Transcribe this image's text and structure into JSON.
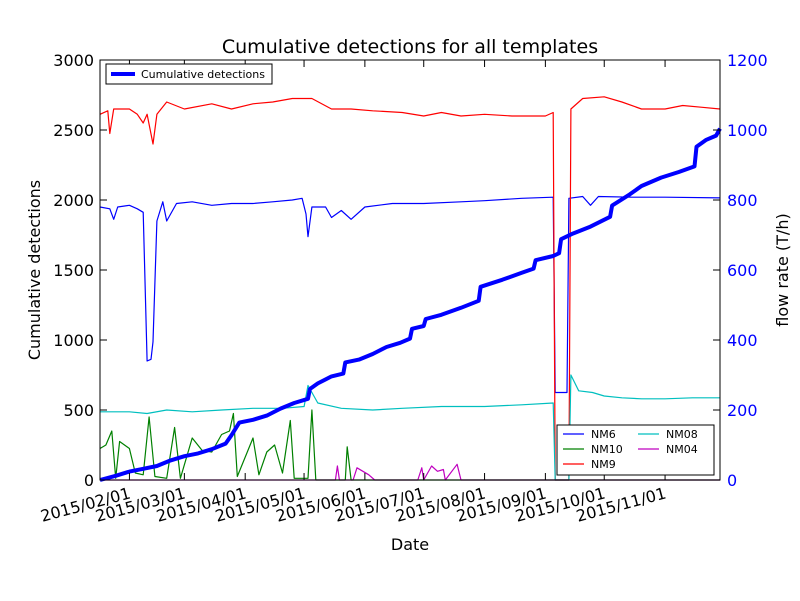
{
  "chart_data": {
    "type": "line",
    "title": "Cumulative detections for all templates",
    "xlabel": "Date",
    "ylabel": "Cumulative detections",
    "y2label": "flow rate (T/h)",
    "xlim": [
      "2015-01-17",
      "2015-11-29"
    ],
    "ylim": [
      0,
      3000
    ],
    "y2lim": [
      0,
      1200
    ],
    "yticks": [
      "0",
      "500",
      "1000",
      "1500",
      "2000",
      "2500",
      "3000"
    ],
    "y2ticks": [
      "0",
      "200",
      "400",
      "600",
      "800",
      "1000",
      "1200"
    ],
    "xticks": [
      {
        "date": "2015-02-01",
        "label": "2015/02/01"
      },
      {
        "date": "2015-03-01",
        "label": "2015/03/01"
      },
      {
        "date": "2015-04-01",
        "label": "2015/04/01"
      },
      {
        "date": "2015-05-01",
        "label": "2015/05/01"
      },
      {
        "date": "2015-06-01",
        "label": "2015/06/01"
      },
      {
        "date": "2015-07-01",
        "label": "2015/07/01"
      },
      {
        "date": "2015-08-01",
        "label": "2015/08/01"
      },
      {
        "date": "2015-09-01",
        "label": "2015/09/01"
      },
      {
        "date": "2015-10-01",
        "label": "2015/10/01"
      },
      {
        "date": "2015-11-01",
        "label": "2015/11/01"
      }
    ],
    "grid": false,
    "legend_left": {
      "placement": "top-left",
      "entries": [
        "Cumulative detections"
      ]
    },
    "legend_right": {
      "placement": "lower-right",
      "entries": [
        "NM6",
        "NM08",
        "NM10",
        "NM04",
        "NM9"
      ]
    },
    "series": [
      {
        "name": "Cumulative detections",
        "axis": "left",
        "color": "#0000ff",
        "width": "thick",
        "points": [
          [
            "2015-01-17",
            0
          ],
          [
            "2015-01-25",
            30
          ],
          [
            "2015-02-01",
            60
          ],
          [
            "2015-02-08",
            80
          ],
          [
            "2015-02-15",
            100
          ],
          [
            "2015-02-22",
            140
          ],
          [
            "2015-03-01",
            170
          ],
          [
            "2015-03-08",
            190
          ],
          [
            "2015-03-15",
            220
          ],
          [
            "2015-03-22",
            260
          ],
          [
            "2015-03-25",
            320
          ],
          [
            "2015-03-29",
            410
          ],
          [
            "2015-04-05",
            430
          ],
          [
            "2015-04-12",
            460
          ],
          [
            "2015-04-19",
            510
          ],
          [
            "2015-04-26",
            550
          ],
          [
            "2015-05-03",
            580
          ],
          [
            "2015-05-04",
            650
          ],
          [
            "2015-05-08",
            690
          ],
          [
            "2015-05-15",
            740
          ],
          [
            "2015-05-21",
            760
          ],
          [
            "2015-05-22",
            840
          ],
          [
            "2015-05-29",
            860
          ],
          [
            "2015-06-05",
            900
          ],
          [
            "2015-06-12",
            950
          ],
          [
            "2015-06-19",
            980
          ],
          [
            "2015-06-24",
            1010
          ],
          [
            "2015-06-25",
            1080
          ],
          [
            "2015-07-01",
            1100
          ],
          [
            "2015-07-02",
            1150
          ],
          [
            "2015-07-10",
            1180
          ],
          [
            "2015-07-20",
            1230
          ],
          [
            "2015-07-29",
            1280
          ],
          [
            "2015-07-30",
            1380
          ],
          [
            "2015-08-10",
            1430
          ],
          [
            "2015-08-20",
            1480
          ],
          [
            "2015-08-26",
            1510
          ],
          [
            "2015-08-27",
            1570
          ],
          [
            "2015-09-05",
            1600
          ],
          [
            "2015-09-08",
            1620
          ],
          [
            "2015-09-09",
            1720
          ],
          [
            "2015-09-15",
            1760
          ],
          [
            "2015-09-24",
            1810
          ],
          [
            "2015-10-04",
            1880
          ],
          [
            "2015-10-05",
            1960
          ],
          [
            "2015-10-14",
            2040
          ],
          [
            "2015-10-20",
            2100
          ],
          [
            "2015-10-30",
            2160
          ],
          [
            "2015-11-08",
            2200
          ],
          [
            "2015-11-16",
            2240
          ],
          [
            "2015-11-17",
            2380
          ],
          [
            "2015-11-22",
            2430
          ],
          [
            "2015-11-27",
            2460
          ],
          [
            "2015-11-29",
            2510
          ]
        ]
      },
      {
        "name": "NM6",
        "axis": "right",
        "color": "#0000ff",
        "width": "thin",
        "points": [
          [
            "2015-01-17",
            780
          ],
          [
            "2015-01-22",
            775
          ],
          [
            "2015-01-24",
            745
          ],
          [
            "2015-01-26",
            780
          ],
          [
            "2015-02-01",
            785
          ],
          [
            "2015-02-05",
            775
          ],
          [
            "2015-02-08",
            765
          ],
          [
            "2015-02-10",
            340
          ],
          [
            "2015-02-12",
            345
          ],
          [
            "2015-02-13",
            395
          ],
          [
            "2015-02-15",
            740
          ],
          [
            "2015-02-18",
            795
          ],
          [
            "2015-02-20",
            740
          ],
          [
            "2015-02-25",
            790
          ],
          [
            "2015-03-05",
            795
          ],
          [
            "2015-03-15",
            785
          ],
          [
            "2015-03-25",
            790
          ],
          [
            "2015-04-05",
            790
          ],
          [
            "2015-04-15",
            795
          ],
          [
            "2015-04-25",
            800
          ],
          [
            "2015-04-30",
            805
          ],
          [
            "2015-05-02",
            760
          ],
          [
            "2015-05-03",
            695
          ],
          [
            "2015-05-05",
            780
          ],
          [
            "2015-05-12",
            780
          ],
          [
            "2015-05-15",
            750
          ],
          [
            "2015-05-20",
            770
          ],
          [
            "2015-05-25",
            745
          ],
          [
            "2015-06-01",
            780
          ],
          [
            "2015-06-15",
            790
          ],
          [
            "2015-07-01",
            790
          ],
          [
            "2015-07-20",
            795
          ],
          [
            "2015-08-01",
            798
          ],
          [
            "2015-08-20",
            805
          ],
          [
            "2015-09-05",
            808
          ],
          [
            "2015-09-06",
            250
          ],
          [
            "2015-09-12",
            250
          ],
          [
            "2015-09-13",
            805
          ],
          [
            "2015-09-20",
            810
          ],
          [
            "2015-09-24",
            785
          ],
          [
            "2015-09-28",
            810
          ],
          [
            "2015-10-15",
            808
          ],
          [
            "2015-11-01",
            808
          ],
          [
            "2015-11-29",
            806
          ]
        ]
      },
      {
        "name": "NM9",
        "axis": "right",
        "color": "#ff0000",
        "width": "thin",
        "points": [
          [
            "2015-01-17",
            1045
          ],
          [
            "2015-01-21",
            1055
          ],
          [
            "2015-01-22",
            990
          ],
          [
            "2015-01-24",
            1060
          ],
          [
            "2015-02-01",
            1060
          ],
          [
            "2015-02-05",
            1045
          ],
          [
            "2015-02-08",
            1020
          ],
          [
            "2015-02-10",
            1045
          ],
          [
            "2015-02-13",
            960
          ],
          [
            "2015-02-15",
            1045
          ],
          [
            "2015-02-20",
            1080
          ],
          [
            "2015-03-01",
            1060
          ],
          [
            "2015-03-15",
            1075
          ],
          [
            "2015-03-25",
            1060
          ],
          [
            "2015-04-05",
            1075
          ],
          [
            "2015-04-15",
            1080
          ],
          [
            "2015-04-25",
            1090
          ],
          [
            "2015-05-05",
            1090
          ],
          [
            "2015-05-15",
            1060
          ],
          [
            "2015-05-25",
            1060
          ],
          [
            "2015-06-05",
            1055
          ],
          [
            "2015-06-20",
            1050
          ],
          [
            "2015-07-01",
            1040
          ],
          [
            "2015-07-10",
            1050
          ],
          [
            "2015-07-20",
            1040
          ],
          [
            "2015-08-01",
            1045
          ],
          [
            "2015-08-15",
            1040
          ],
          [
            "2015-09-01",
            1040
          ],
          [
            "2015-09-05",
            1050
          ],
          [
            "2015-09-06",
            0
          ],
          [
            "2015-09-13",
            0
          ],
          [
            "2015-09-14",
            1060
          ],
          [
            "2015-09-20",
            1090
          ],
          [
            "2015-10-01",
            1095
          ],
          [
            "2015-10-10",
            1080
          ],
          [
            "2015-10-20",
            1060
          ],
          [
            "2015-11-01",
            1060
          ],
          [
            "2015-11-10",
            1070
          ],
          [
            "2015-11-20",
            1065
          ],
          [
            "2015-11-29",
            1060
          ]
        ]
      },
      {
        "name": "NM08",
        "axis": "right",
        "color": "#00bfbf",
        "width": "thin",
        "points": [
          [
            "2015-01-17",
            195
          ],
          [
            "2015-02-01",
            195
          ],
          [
            "2015-02-10",
            190
          ],
          [
            "2015-02-20",
            200
          ],
          [
            "2015-03-05",
            195
          ],
          [
            "2015-03-20",
            200
          ],
          [
            "2015-04-05",
            205
          ],
          [
            "2015-04-20",
            205
          ],
          [
            "2015-05-01",
            210
          ],
          [
            "2015-05-03",
            270
          ],
          [
            "2015-05-08",
            220
          ],
          [
            "2015-05-20",
            205
          ],
          [
            "2015-06-05",
            200
          ],
          [
            "2015-06-20",
            205
          ],
          [
            "2015-07-10",
            210
          ],
          [
            "2015-08-01",
            210
          ],
          [
            "2015-08-20",
            215
          ],
          [
            "2015-09-05",
            220
          ],
          [
            "2015-09-06",
            0
          ],
          [
            "2015-09-13",
            0
          ],
          [
            "2015-09-14",
            300
          ],
          [
            "2015-09-18",
            255
          ],
          [
            "2015-09-25",
            250
          ],
          [
            "2015-10-01",
            240
          ],
          [
            "2015-10-10",
            235
          ],
          [
            "2015-10-20",
            232
          ],
          [
            "2015-11-01",
            232
          ],
          [
            "2015-11-15",
            235
          ],
          [
            "2015-11-29",
            235
          ]
        ]
      },
      {
        "name": "NM10",
        "axis": "right",
        "color": "#008000",
        "width": "thin",
        "points": [
          [
            "2015-01-17",
            90
          ],
          [
            "2015-01-20",
            100
          ],
          [
            "2015-01-23",
            140
          ],
          [
            "2015-01-25",
            5
          ],
          [
            "2015-01-27",
            110
          ],
          [
            "2015-02-01",
            90
          ],
          [
            "2015-02-04",
            20
          ],
          [
            "2015-02-08",
            15
          ],
          [
            "2015-02-11",
            180
          ],
          [
            "2015-02-14",
            10
          ],
          [
            "2015-02-20",
            5
          ],
          [
            "2015-02-24",
            150
          ],
          [
            "2015-02-27",
            5
          ],
          [
            "2015-03-05",
            120
          ],
          [
            "2015-03-10",
            85
          ],
          [
            "2015-03-15",
            80
          ],
          [
            "2015-03-20",
            130
          ],
          [
            "2015-03-24",
            140
          ],
          [
            "2015-03-26",
            190
          ],
          [
            "2015-03-28",
            10
          ],
          [
            "2015-04-05",
            120
          ],
          [
            "2015-04-08",
            15
          ],
          [
            "2015-04-12",
            80
          ],
          [
            "2015-04-16",
            100
          ],
          [
            "2015-04-20",
            20
          ],
          [
            "2015-04-24",
            170
          ],
          [
            "2015-04-26",
            5
          ],
          [
            "2015-05-03",
            5
          ],
          [
            "2015-05-05",
            200
          ],
          [
            "2015-05-07",
            0
          ],
          [
            "2015-05-22",
            0
          ],
          [
            "2015-05-23",
            95
          ],
          [
            "2015-05-25",
            0
          ],
          [
            "2015-11-29",
            0
          ]
        ]
      },
      {
        "name": "NM04",
        "axis": "right",
        "color": "#bf00bf",
        "width": "thin",
        "points": [
          [
            "2015-01-17",
            0
          ],
          [
            "2015-05-17",
            0
          ],
          [
            "2015-05-18",
            40
          ],
          [
            "2015-05-19",
            0
          ],
          [
            "2015-05-26",
            0
          ],
          [
            "2015-05-28",
            35
          ],
          [
            "2015-06-03",
            15
          ],
          [
            "2015-06-06",
            0
          ],
          [
            "2015-06-28",
            0
          ],
          [
            "2015-06-30",
            35
          ],
          [
            "2015-07-01",
            0
          ],
          [
            "2015-07-05",
            40
          ],
          [
            "2015-07-08",
            25
          ],
          [
            "2015-07-11",
            30
          ],
          [
            "2015-07-12",
            0
          ],
          [
            "2015-07-18",
            45
          ],
          [
            "2015-07-20",
            0
          ],
          [
            "2015-11-29",
            0
          ]
        ]
      }
    ]
  }
}
